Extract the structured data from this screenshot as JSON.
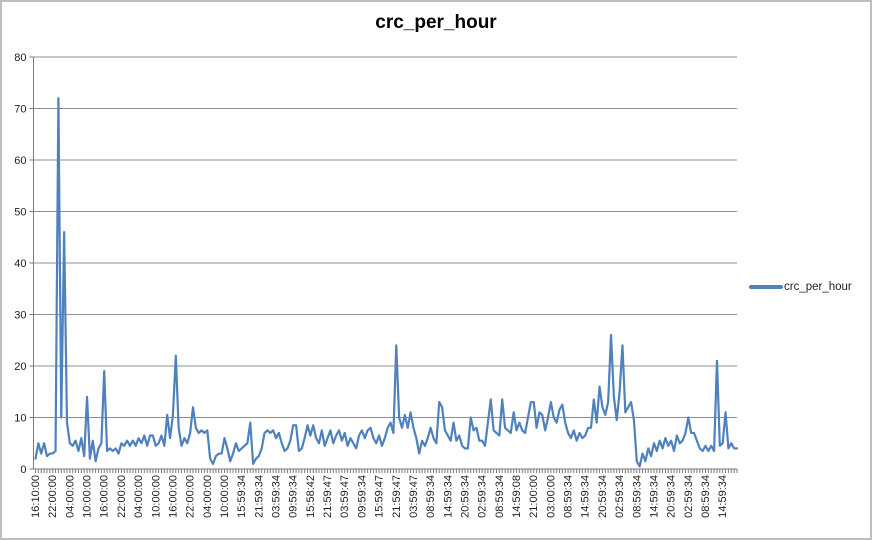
{
  "chart_data": {
    "type": "line",
    "title": "crc_per_hour",
    "xlabel": "",
    "ylabel": "",
    "ylim": [
      0,
      80
    ],
    "y_tick_step": 10,
    "y_tick_labels": [
      "0",
      "10",
      "20",
      "30",
      "40",
      "50",
      "60",
      "70",
      "80"
    ],
    "grid": true,
    "legend_position": "right",
    "label_every_n_points": 6,
    "x_tick_labels": [
      "16:10:00",
      "22:00:00",
      "04:00:00",
      "10:00:00",
      "16:00:00",
      "22:00:00",
      "04:00:00",
      "10:00:00",
      "16:00:00",
      "22:00:00",
      "04:00:00",
      "10:00:00",
      "15:59:34",
      "21:59:34",
      "03:59:34",
      "09:59:34",
      "15:58:42",
      "21:59:47",
      "03:59:47",
      "09:59:34",
      "15:59:47",
      "21:59:47",
      "03:59:47",
      "08:59:34",
      "14:59:34",
      "20:59:34",
      "02:59:34",
      "08:59:34",
      "14:59:08",
      "21:00:00",
      "03:00:00",
      "08:59:34",
      "14:59:34",
      "20:59:34",
      "02:59:34",
      "08:59:34",
      "14:59:34",
      "20:59:34",
      "02:59:34",
      "08:59:34",
      "14:59:34"
    ],
    "series": [
      {
        "name": "crc_per_hour",
        "color": "#4F81BD",
        "values": [
          2,
          5,
          3,
          5,
          2.5,
          3,
          3,
          3.5,
          72,
          10,
          46,
          9,
          5,
          4.5,
          5.5,
          3.5,
          6,
          2.5,
          14,
          2,
          5.5,
          1.5,
          4,
          5,
          19,
          3.5,
          4,
          3.5,
          4,
          3,
          5,
          4.5,
          5.5,
          4.5,
          5.5,
          4.5,
          6,
          5,
          6.5,
          4.5,
          6.5,
          6.5,
          4.5,
          5,
          6.5,
          4.5,
          10.5,
          6,
          10.5,
          22,
          8,
          4.5,
          6,
          5,
          7,
          12,
          8,
          7,
          7.5,
          7,
          7.5,
          2,
          1,
          2.5,
          3,
          3,
          6,
          4,
          1.5,
          3,
          5,
          3.5,
          4,
          4.5,
          5,
          9,
          1,
          2,
          2.5,
          4,
          7,
          7.5,
          7,
          7.5,
          6,
          7,
          5,
          3.5,
          4,
          5.5,
          8.5,
          8.5,
          3.5,
          4,
          6,
          8.5,
          6.5,
          8.5,
          6,
          5,
          7.5,
          4.5,
          6,
          7.5,
          5,
          6.5,
          7.5,
          5.5,
          7,
          4.5,
          6,
          5,
          4,
          6.5,
          7.5,
          6,
          7.5,
          8,
          6,
          5,
          6.5,
          4.5,
          6,
          8,
          9,
          7,
          24,
          10,
          8,
          10.5,
          8,
          11,
          8,
          6,
          3,
          5.5,
          4.5,
          6,
          8,
          6,
          5,
          13,
          12,
          7.5,
          6.5,
          5.5,
          9,
          5.5,
          6.5,
          4.5,
          4,
          4,
          10,
          7.5,
          8,
          5.5,
          5.5,
          4.5,
          9,
          13.5,
          7.5,
          7,
          6.5,
          13.5,
          8,
          7.5,
          7,
          11,
          7.5,
          9,
          7.5,
          7,
          10,
          13,
          13,
          8,
          11,
          10.5,
          7.5,
          10,
          13,
          10,
          9,
          11.5,
          12.5,
          9,
          7,
          6,
          7.5,
          5.5,
          7,
          6,
          6.5,
          8,
          8,
          13.5,
          9,
          16,
          12,
          10.5,
          13,
          26,
          14,
          9.5,
          15,
          24,
          11,
          12,
          13,
          9.5,
          1.5,
          0.5,
          3,
          1.5,
          4,
          2.5,
          5,
          3.5,
          5.5,
          4,
          6,
          4.5,
          5.5,
          3.5,
          6.5,
          5,
          5.5,
          7,
          10,
          7,
          7,
          5.5,
          4,
          3.5,
          4.5,
          3.5,
          4.5,
          3.5,
          21,
          4.5,
          5,
          11,
          4,
          5,
          4,
          4
        ]
      }
    ],
    "colors": {
      "line": "#4F81BD",
      "gridline": "#8f8f8f",
      "axis": "#7a7a7a",
      "tick": "#7a7a7a",
      "text": "#1f1f1f",
      "border": "#bdbdbd",
      "background": "#ffffff"
    }
  }
}
